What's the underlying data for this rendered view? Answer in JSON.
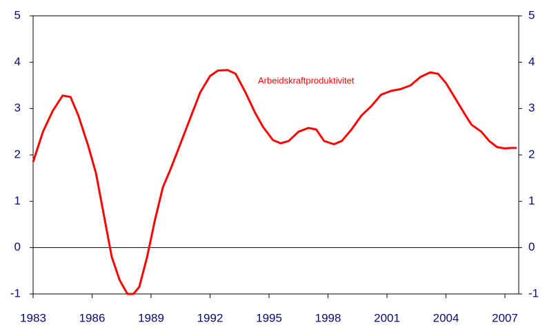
{
  "chart_data": {
    "type": "line",
    "annotation": "Arbeidskraftproduktivitet",
    "x": [
      1983.0,
      1983.5,
      1984.0,
      1984.5,
      1984.9,
      1985.3,
      1985.8,
      1986.2,
      1986.6,
      1987.0,
      1987.4,
      1987.8,
      1988.1,
      1988.4,
      1988.8,
      1989.2,
      1989.6,
      1990.0,
      1990.5,
      1991.0,
      1991.5,
      1992.0,
      1992.4,
      1992.9,
      1993.3,
      1993.8,
      1994.3,
      1994.7,
      1995.2,
      1995.6,
      1996.0,
      1996.5,
      1997.0,
      1997.4,
      1997.8,
      1998.3,
      1998.7,
      1999.2,
      1999.7,
      2000.2,
      2000.7,
      2001.2,
      2001.7,
      2002.2,
      2002.7,
      2003.2,
      2003.6,
      2004.0,
      2004.5,
      2005.0,
      2005.3,
      2005.8,
      2006.2,
      2006.6,
      2007.0,
      2007.3,
      2007.6
    ],
    "series": [
      {
        "name": "Arbeidskraftproduktivitet",
        "color": "#ff0000",
        "values": [
          1.85,
          2.5,
          2.95,
          3.28,
          3.25,
          2.85,
          2.2,
          1.6,
          0.7,
          -0.2,
          -0.7,
          -1.0,
          -1.0,
          -0.85,
          -0.2,
          0.6,
          1.3,
          1.7,
          2.25,
          2.8,
          3.35,
          3.7,
          3.82,
          3.83,
          3.75,
          3.35,
          2.9,
          2.6,
          2.32,
          2.25,
          2.3,
          2.5,
          2.58,
          2.55,
          2.3,
          2.23,
          2.3,
          2.55,
          2.85,
          3.05,
          3.3,
          3.38,
          3.42,
          3.5,
          3.68,
          3.78,
          3.75,
          3.55,
          3.2,
          2.85,
          2.65,
          2.5,
          2.3,
          2.17,
          2.14,
          2.15,
          2.15
        ]
      }
    ],
    "xlim": [
      1983,
      2007.7
    ],
    "xticks": [
      1983,
      1986,
      1989,
      1992,
      1995,
      1998,
      2001,
      2004,
      2007
    ],
    "ylim": [
      -1,
      5
    ],
    "yticks": [
      -1,
      0,
      1,
      2,
      3,
      4,
      5
    ]
  }
}
